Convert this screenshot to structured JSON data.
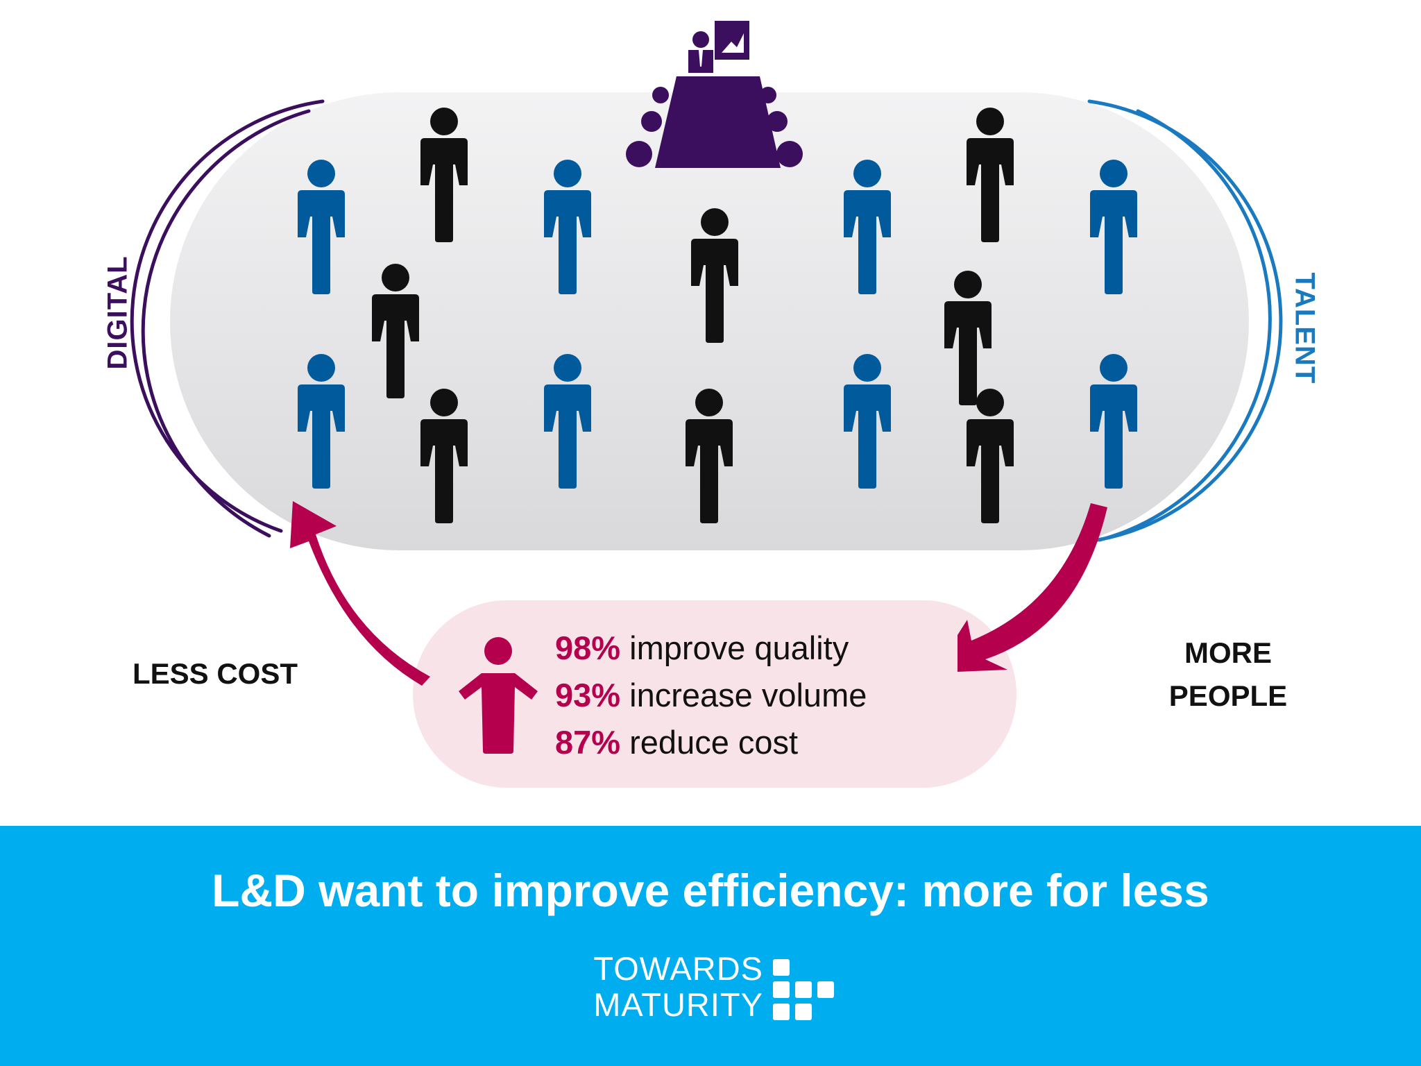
{
  "colors": {
    "blue_person": "#005a9c",
    "black_person": "#111111",
    "purple": "#3c0f5e",
    "pink_accent": "#b5004e",
    "talent_blue": "#1a7ac0",
    "banner_blue": "#00adef",
    "oval_fill": "#e6e6e8",
    "summary_fill": "#f8e3e8"
  },
  "labels": {
    "digital": "DIGITAL",
    "talent": "TALENT",
    "less_cost": "LESS COST",
    "more_people_line1": "MORE",
    "more_people_line2": "PEOPLE"
  },
  "stats": [
    {
      "percent": "98%",
      "text": "improve quality"
    },
    {
      "percent": "93%",
      "text": "increase volume"
    },
    {
      "percent": "87%",
      "text": "reduce cost"
    }
  ],
  "banner": {
    "headline": "L&D want to improve efficiency: more for less",
    "brand_line1": "TOWARDS",
    "brand_line2": "MATURITY"
  },
  "icons": {
    "presenter": "presenter-at-board-icon",
    "person": "person-icon",
    "cycle_arrow": "curved-arrow-icon",
    "logo_mark": "square-blocks-logo-icon"
  }
}
